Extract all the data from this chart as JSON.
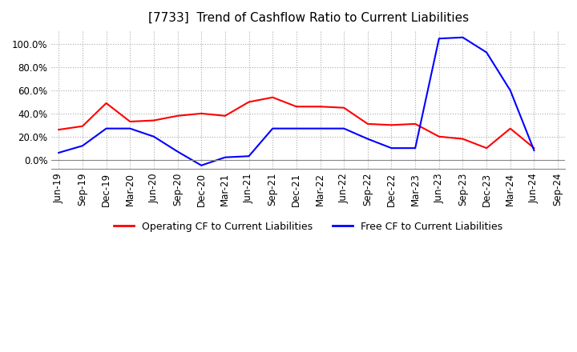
{
  "title": "[7733]  Trend of Cashflow Ratio to Current Liabilities",
  "ylim": [
    -0.08,
    1.12
  ],
  "yticks": [
    0.0,
    0.2,
    0.4,
    0.6,
    0.8,
    1.0
  ],
  "ytick_labels": [
    "0.0%",
    "20.0%",
    "40.0%",
    "60.0%",
    "80.0%",
    "100.0%"
  ],
  "background_color": "#ffffff",
  "grid_color": "#aaaaaa",
  "x_labels": [
    "Jun-19",
    "Sep-19",
    "Dec-19",
    "Mar-20",
    "Jun-20",
    "Sep-20",
    "Dec-20",
    "Mar-21",
    "Jun-21",
    "Sep-21",
    "Dec-21",
    "Mar-22",
    "Jun-22",
    "Sep-22",
    "Dec-22",
    "Mar-23",
    "Jun-23",
    "Sep-23",
    "Dec-23",
    "Mar-24",
    "Jun-24",
    "Sep-24"
  ],
  "operating_cf": [
    0.26,
    0.29,
    0.49,
    0.33,
    0.34,
    0.38,
    0.4,
    0.38,
    0.5,
    0.54,
    0.46,
    0.46,
    0.45,
    0.31,
    0.3,
    0.31,
    0.2,
    0.18,
    0.1,
    0.27,
    0.1,
    null
  ],
  "free_cf": [
    0.06,
    0.12,
    0.27,
    0.27,
    0.2,
    0.07,
    -0.05,
    0.02,
    0.03,
    0.27,
    0.27,
    0.27,
    0.27,
    0.18,
    0.1,
    0.1,
    1.05,
    1.06,
    0.93,
    0.6,
    0.08,
    null
  ],
  "operating_color": "#ff0000",
  "free_color": "#0000ff",
  "legend_labels": [
    "Operating CF to Current Liabilities",
    "Free CF to Current Liabilities"
  ],
  "title_fontsize": 11,
  "tick_fontsize": 8.5
}
